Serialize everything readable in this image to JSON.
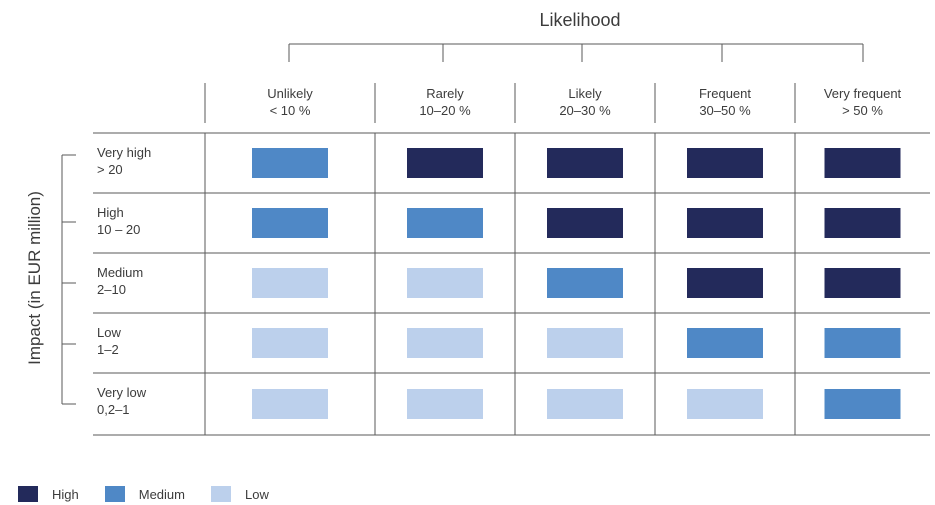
{
  "chart_data": {
    "type": "heatmap",
    "title": "",
    "x_title": "Likelihood",
    "y_title": "Impact (in EUR million)",
    "columns": [
      {
        "line1": "Unlikely",
        "line2": "< 10 %"
      },
      {
        "line1": "Rarely",
        "line2": "10–20 %"
      },
      {
        "line1": "Likely",
        "line2": "20–30 %"
      },
      {
        "line1": "Frequent",
        "line2": "30–50 %"
      },
      {
        "line1": "Very frequent",
        "line2": "> 50 %"
      }
    ],
    "rows": [
      {
        "line1": "Very high",
        "line2": "> 20"
      },
      {
        "line1": "High",
        "line2": "10 – 20"
      },
      {
        "line1": "Medium",
        "line2": "2–10"
      },
      {
        "line1": "Low",
        "line2": "1–2"
      },
      {
        "line1": "Very low",
        "line2": "0,2–1"
      }
    ],
    "cells": [
      [
        "Medium",
        "High",
        "High",
        "High",
        "High"
      ],
      [
        "Medium",
        "Medium",
        "High",
        "High",
        "High"
      ],
      [
        "Low",
        "Low",
        "Medium",
        "High",
        "High"
      ],
      [
        "Low",
        "Low",
        "Low",
        "Medium",
        "Medium"
      ],
      [
        "Low",
        "Low",
        "Low",
        "Low",
        "Medium"
      ]
    ],
    "legend": [
      {
        "level": "High",
        "label": "High",
        "color": "#232a5b"
      },
      {
        "level": "Medium",
        "label": "Medium",
        "color": "#4f88c6"
      },
      {
        "level": "Low",
        "label": "Low",
        "color": "#bcd0ec"
      }
    ],
    "legend_placement": "bottom-left",
    "grid_color": "#5a5a5a"
  }
}
